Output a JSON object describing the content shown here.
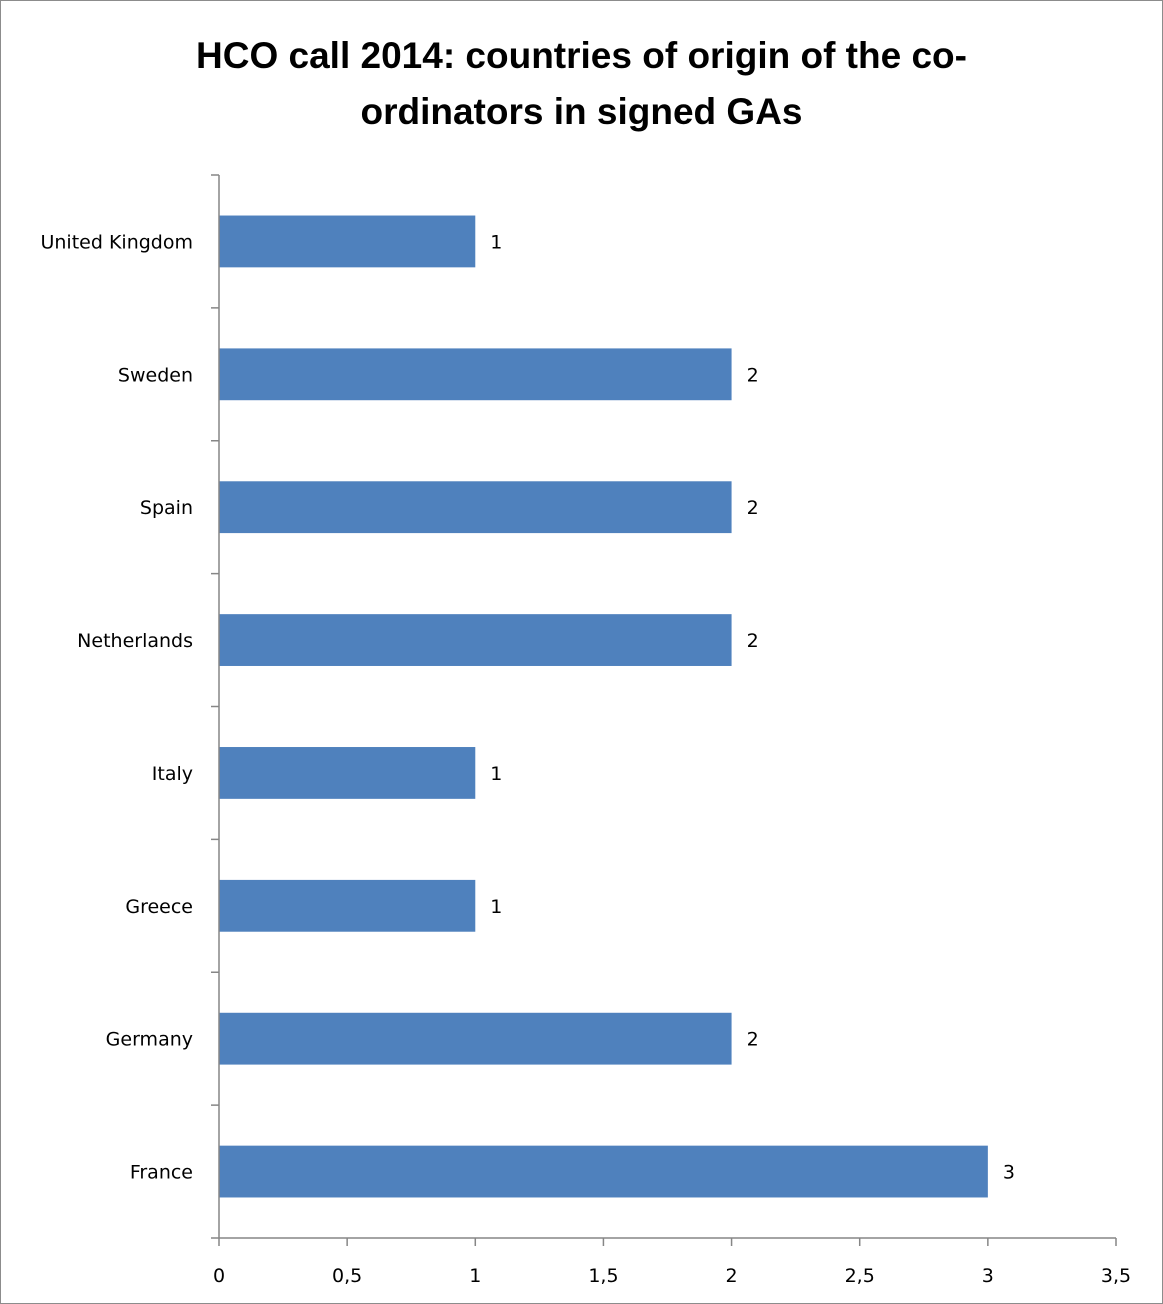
{
  "chart_data": {
    "type": "bar",
    "orientation": "horizontal",
    "title_lines": [
      "HCO call 2014: countries of origin of the co-",
      "ordinators in signed GAs"
    ],
    "categories": [
      "United Kingdom",
      "Sweden",
      "Spain",
      "Netherlands",
      "Italy",
      "Greece",
      "Germany",
      "France"
    ],
    "values": [
      1,
      2,
      2,
      2,
      1,
      1,
      2,
      3
    ],
    "data_labels": [
      "1",
      "2",
      "2",
      "2",
      "1",
      "1",
      "2",
      "3"
    ],
    "x_ticks": [
      0,
      0.5,
      1,
      1.5,
      2,
      2.5,
      3,
      3.5
    ],
    "x_tick_labels": [
      "0",
      "0,5",
      "1",
      "1,5",
      "2",
      "2,5",
      "3",
      "3,5"
    ],
    "xlim": [
      0,
      3.5
    ],
    "bar_color": "#4f81bd",
    "grid": false,
    "legend": "none"
  }
}
